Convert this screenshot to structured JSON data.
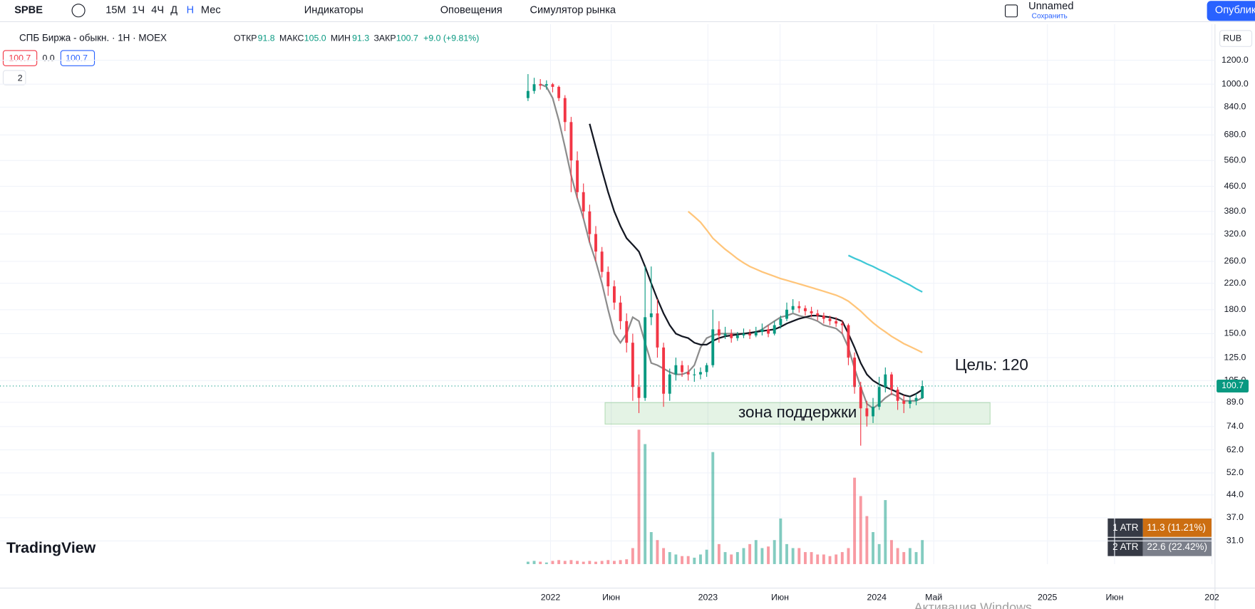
{
  "toolbar": {
    "symbol": "SPBE",
    "intervals": [
      "15М",
      "1Ч",
      "4Ч",
      "Д",
      "Н",
      "Мес"
    ],
    "indicators": "Индикаторы",
    "alerts": "Оповещения",
    "replay": "Симулятор рынка",
    "layout_name": "Unnamed",
    "save": "Сохранить",
    "publish": "Опублик"
  },
  "legend": {
    "title": "СПБ Биржа - обыкн. · 1Н · MOEX",
    "open_label": "ОТКР",
    "open": "91.8",
    "high_label": "МАКС",
    "high": "105.0",
    "low_label": "МИН",
    "low": "91.3",
    "close_label": "ЗАКР",
    "close": "100.7",
    "change": "+9.0 (+9.81%)",
    "bid": "100.7",
    "spread": "0.0",
    "ask": "100.7",
    "collapsed": "2"
  },
  "currency": "RUB",
  "atr": [
    {
      "label": "1 ATR",
      "value": "11.3 (11.21%)"
    },
    {
      "label": "2 ATR",
      "value": "22.6 (22.42%)"
    }
  ],
  "brand": "TradingView",
  "watermark": "Активация Windows",
  "chart_data": {
    "type": "candlestick",
    "log_scale": true,
    "grid": true,
    "up_color": "#089981",
    "down_color": "#f23645",
    "x": [
      0,
      2,
      4,
      6,
      8,
      10,
      12,
      14,
      16,
      18,
      20,
      22,
      24,
      26,
      28,
      30,
      32,
      34,
      36,
      38,
      40,
      42,
      44,
      46,
      48,
      50,
      52,
      54,
      56,
      58,
      60,
      62,
      64,
      66,
      68,
      70,
      72,
      74,
      76,
      78,
      80,
      82,
      84,
      86,
      88,
      90,
      92,
      94,
      96,
      98,
      100,
      102,
      104,
      106,
      108,
      110,
      112,
      114,
      116,
      118,
      120,
      122,
      124,
      126,
      128
    ],
    "open": [
      900,
      950,
      1000,
      990,
      1000,
      980,
      900,
      750,
      560,
      440,
      380,
      320,
      280,
      240,
      215,
      190,
      165,
      140,
      100,
      92,
      170,
      175,
      135,
      95,
      110,
      118,
      112,
      110,
      110,
      112,
      118,
      155,
      148,
      150,
      145,
      148,
      150,
      148,
      152,
      155,
      150,
      160,
      168,
      180,
      185,
      182,
      178,
      175,
      172,
      168,
      165,
      162,
      160,
      125,
      100,
      85,
      80,
      86,
      100,
      110,
      98,
      90,
      88,
      90,
      91.8
    ],
    "high": [
      1080,
      1050,
      1040,
      1030,
      1010,
      990,
      920,
      780,
      600,
      470,
      400,
      340,
      290,
      250,
      225,
      200,
      175,
      150,
      110,
      250,
      250,
      195,
      140,
      115,
      125,
      122,
      118,
      115,
      116,
      120,
      180,
      165,
      158,
      155,
      152,
      156,
      155,
      158,
      162,
      160,
      165,
      172,
      190,
      195,
      192,
      186,
      184,
      180,
      176,
      172,
      170,
      166,
      162,
      130,
      104,
      90,
      92,
      108,
      116,
      112,
      100,
      94,
      93,
      95,
      105.0
    ],
    "low": [
      880,
      930,
      960,
      960,
      940,
      880,
      700,
      440,
      420,
      360,
      300,
      260,
      230,
      200,
      180,
      155,
      130,
      90,
      82,
      90,
      160,
      125,
      86,
      90,
      105,
      108,
      105,
      104,
      106,
      108,
      116,
      140,
      144,
      140,
      142,
      145,
      144,
      146,
      148,
      146,
      148,
      156,
      165,
      176,
      176,
      172,
      170,
      166,
      162,
      160,
      158,
      150,
      118,
      95,
      64,
      74,
      76,
      84,
      96,
      94,
      84,
      82,
      85,
      87,
      91.3
    ],
    "close": [
      950,
      1000,
      990,
      1000,
      980,
      900,
      750,
      560,
      440,
      380,
      320,
      280,
      240,
      215,
      190,
      165,
      140,
      100,
      92,
      170,
      175,
      135,
      95,
      110,
      118,
      112,
      110,
      110,
      112,
      118,
      155,
      148,
      150,
      145,
      148,
      150,
      148,
      152,
      155,
      150,
      160,
      168,
      180,
      185,
      182,
      178,
      175,
      172,
      168,
      165,
      162,
      160,
      125,
      100,
      85,
      80,
      86,
      100,
      110,
      98,
      90,
      88,
      90,
      92,
      100.7
    ],
    "volume": [
      3,
      4,
      3,
      2,
      4,
      5,
      4,
      5,
      4,
      3,
      4,
      3,
      4,
      5,
      4,
      5,
      6,
      20,
      168,
      150,
      40,
      30,
      20,
      15,
      12,
      10,
      10,
      8,
      12,
      18,
      140,
      25,
      15,
      12,
      15,
      20,
      25,
      30,
      20,
      22,
      30,
      57,
      25,
      20,
      20,
      15,
      15,
      12,
      12,
      10,
      12,
      15,
      20,
      108,
      85,
      60,
      40,
      25,
      80,
      30,
      20,
      15,
      20,
      15,
      30
    ],
    "moving_averages": [
      {
        "color": "#8c8c8c",
        "values": [
          null,
          null,
          1000,
          980,
          900,
          760,
          620,
          500,
          420,
          360,
          300,
          260,
          220,
          180,
          150,
          140,
          150,
          170,
          165,
          140,
          120,
          118,
          115,
          112,
          110,
          110,
          112,
          118,
          135,
          145,
          148,
          150,
          150,
          150,
          150,
          150,
          150,
          152,
          155,
          160,
          165,
          170,
          172,
          175,
          172,
          170,
          168,
          165,
          160,
          158,
          156,
          150,
          135,
          115,
          100,
          88,
          85,
          88,
          92,
          95,
          93,
          90,
          90,
          90,
          92
        ]
      },
      {
        "color": "#131722",
        "values": [
          null,
          null,
          null,
          null,
          null,
          null,
          null,
          null,
          null,
          null,
          740,
          620,
          520,
          440,
          380,
          340,
          310,
          295,
          280,
          250,
          220,
          195,
          175,
          160,
          150,
          147,
          145,
          140,
          138,
          138,
          142,
          145,
          147,
          148,
          149,
          150,
          151,
          152,
          153,
          154,
          155,
          158,
          162,
          165,
          168,
          170,
          172,
          172,
          171,
          170,
          168,
          165,
          150,
          135,
          120,
          110,
          105,
          102,
          100,
          98,
          96,
          94,
          93,
          95,
          98
        ]
      },
      {
        "color": "#ffc57a",
        "values": [
          null,
          null,
          null,
          null,
          null,
          null,
          null,
          null,
          null,
          null,
          null,
          null,
          null,
          null,
          null,
          null,
          null,
          null,
          null,
          null,
          null,
          null,
          null,
          null,
          null,
          null,
          380,
          365,
          350,
          330,
          310,
          297,
          285,
          275,
          265,
          257,
          250,
          245,
          240,
          236,
          232,
          228,
          225,
          222,
          219,
          216,
          213,
          210,
          207,
          204,
          201,
          197,
          192,
          185,
          178,
          170,
          163,
          157,
          152,
          147,
          143,
          139,
          136,
          133,
          130
        ]
      },
      {
        "color": "#3fc8d6",
        "values": [
          null,
          null,
          null,
          null,
          null,
          null,
          null,
          null,
          null,
          null,
          null,
          null,
          null,
          null,
          null,
          null,
          null,
          null,
          null,
          null,
          null,
          null,
          null,
          null,
          null,
          null,
          null,
          null,
          null,
          null,
          null,
          null,
          null,
          null,
          null,
          null,
          null,
          null,
          null,
          null,
          null,
          null,
          null,
          null,
          null,
          null,
          null,
          null,
          null,
          null,
          null,
          null,
          272,
          266,
          261,
          255,
          250,
          244,
          239,
          233,
          228,
          222,
          217,
          211,
          206
        ]
      }
    ],
    "support_zone": {
      "label": "зона поддержки",
      "x": [
        25,
        150
      ],
      "range": [
        75.4,
        88.8
      ]
    },
    "annotations": [
      {
        "text": "Цель: 120"
      }
    ],
    "xlim": [
      -171.4,
      223
    ],
    "xticks": [
      {
        "value": 7.3,
        "label": "2022"
      },
      {
        "value": 27,
        "label": "Июн"
      },
      {
        "value": 58.4,
        "label": "2023"
      },
      {
        "value": 81.8,
        "label": "Июн"
      },
      {
        "value": 113.2,
        "label": "2024"
      },
      {
        "value": 131.7,
        "label": "Май"
      },
      {
        "value": 168.6,
        "label": "2025"
      },
      {
        "value": 190.4,
        "label": "Июн"
      },
      {
        "value": 222,
        "label": "202"
      }
    ],
    "ylim": [
      26,
      1300
    ],
    "yticks": [
      {
        "value": 1200,
        "label": "1200.0"
      },
      {
        "value": 1000,
        "label": "1000.0"
      },
      {
        "value": 840,
        "label": "840.0"
      },
      {
        "value": 680,
        "label": "680.0"
      },
      {
        "value": 560,
        "label": "560.0"
      },
      {
        "value": 460,
        "label": "460.0"
      },
      {
        "value": 380,
        "label": "380.0"
      },
      {
        "value": 320,
        "label": "320.0"
      },
      {
        "value": 260,
        "label": "260.0"
      },
      {
        "value": 220,
        "label": "220.0"
      },
      {
        "value": 180,
        "label": "180.0"
      },
      {
        "value": 150,
        "label": "150.0"
      },
      {
        "value": 125,
        "label": "125.0"
      },
      {
        "value": 105,
        "label": "105.0"
      },
      {
        "value": 89,
        "label": "89.0"
      },
      {
        "value": 74,
        "label": "74.0"
      },
      {
        "value": 62,
        "label": "62.0"
      },
      {
        "value": 52,
        "label": "52.0"
      },
      {
        "value": 44,
        "label": "44.0"
      },
      {
        "value": 37,
        "label": "37.0"
      },
      {
        "value": 31,
        "label": "31.0"
      }
    ]
  }
}
